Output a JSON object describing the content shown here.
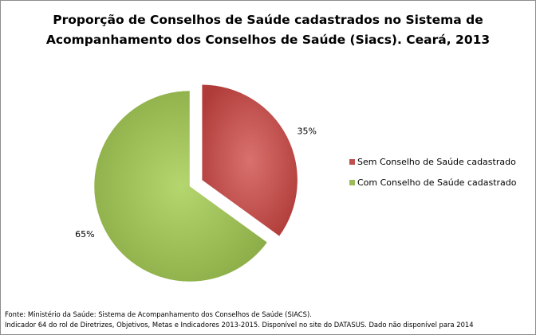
{
  "chart_data": {
    "type": "pie",
    "title_lines": [
      "Proporção de Conselhos de Saúde cadastrados no Sistema de",
      "Acompanhamento dos Conselhos de Saúde (Siacs). Ceará, 2013"
    ],
    "categories": [
      "Sem Conselho de Saúde cadastrado",
      "Com Conselho de Saúde cadastrado"
    ],
    "values": [
      35,
      65
    ],
    "data_labels": [
      "35%",
      "65%"
    ],
    "colors": [
      "#c0504d",
      "#9bbb59"
    ],
    "exploded": [
      true,
      false
    ],
    "legend_position": "right"
  },
  "footer": {
    "line1": "Fonte: Ministério da Saúde:  Sistema de Acompanhamento dos Conselhos de Saúde (SIACS).",
    "line2": "Indicador 64  do rol de Diretrizes, Objetivos, Metas e Indicadores 2013-2015. Disponível no site do DATASUS. Dado não disponível para 2014"
  }
}
